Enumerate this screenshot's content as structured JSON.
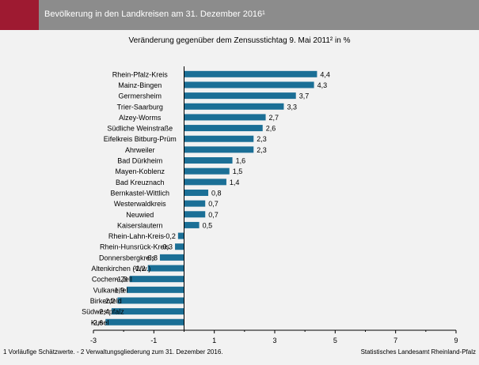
{
  "header": {
    "title": "Bevölkerung in den Landkreisen am 31. Dezember 2016¹"
  },
  "footer": {
    "footnote": "1 Vorläufige Schätzwerte. - 2 Verwaltungsgliederung zum 31. Dezember 2016.",
    "source": "Statistisches Landesamt Rheinland-Pfalz"
  },
  "colors": {
    "bar": "#1b6f96",
    "header": "#8c8c8c",
    "accent": "#9e1a31",
    "background": "#f2f2f2"
  },
  "chart_data": {
    "type": "bar",
    "orientation": "horizontal",
    "title": "Veränderung gegenüber dem Zensusstichtag 9. Mai 2011² in %",
    "xlim": [
      -3,
      9
    ],
    "xticks": [
      -3,
      -1,
      1,
      3,
      5,
      7,
      9
    ],
    "grid": false,
    "categories": [
      "Rhein-Pfalz-Kreis",
      "Mainz-Bingen",
      "Germersheim",
      "Trier-Saarburg",
      "Alzey-Worms",
      "Südliche Weinstraße",
      "Eifelkreis Bitburg-Prüm",
      "Ahrweiler",
      "Bad Dürkheim",
      "Mayen-Koblenz",
      "Bad Kreuznach",
      "Bernkastel-Wittlich",
      "Westerwaldkreis",
      "Neuwied",
      "Kaiserslautern",
      "Rhein-Lahn-Kreis",
      "Rhein-Hunsrück-Kreis",
      "Donnersbergkreis",
      "Altenkirchen (Ww.)",
      "Cochem-Zell",
      "Vulkaneifel",
      "Birkenfeld",
      "Südwestpfalz",
      "Kusel"
    ],
    "values": [
      4.4,
      4.3,
      3.7,
      3.3,
      2.7,
      2.6,
      2.3,
      2.3,
      1.6,
      1.5,
      1.4,
      0.8,
      0.7,
      0.7,
      0.5,
      -0.2,
      -0.3,
      -0.8,
      -1.2,
      -1.8,
      -1.9,
      -2.2,
      -2.4,
      -2.6
    ],
    "value_labels": [
      "4,4",
      "4,3",
      "3,7",
      "3,3",
      "2,7",
      "2,6",
      "2,3",
      "2,3",
      "1,6",
      "1,5",
      "1,4",
      "0,8",
      "0,7",
      "0,7",
      "0,5",
      "-0,2",
      "-0,3",
      "-0,8",
      "-1,2",
      "-1,8",
      "-1,9",
      "-2,2",
      "-2,4",
      "-2,6"
    ]
  }
}
